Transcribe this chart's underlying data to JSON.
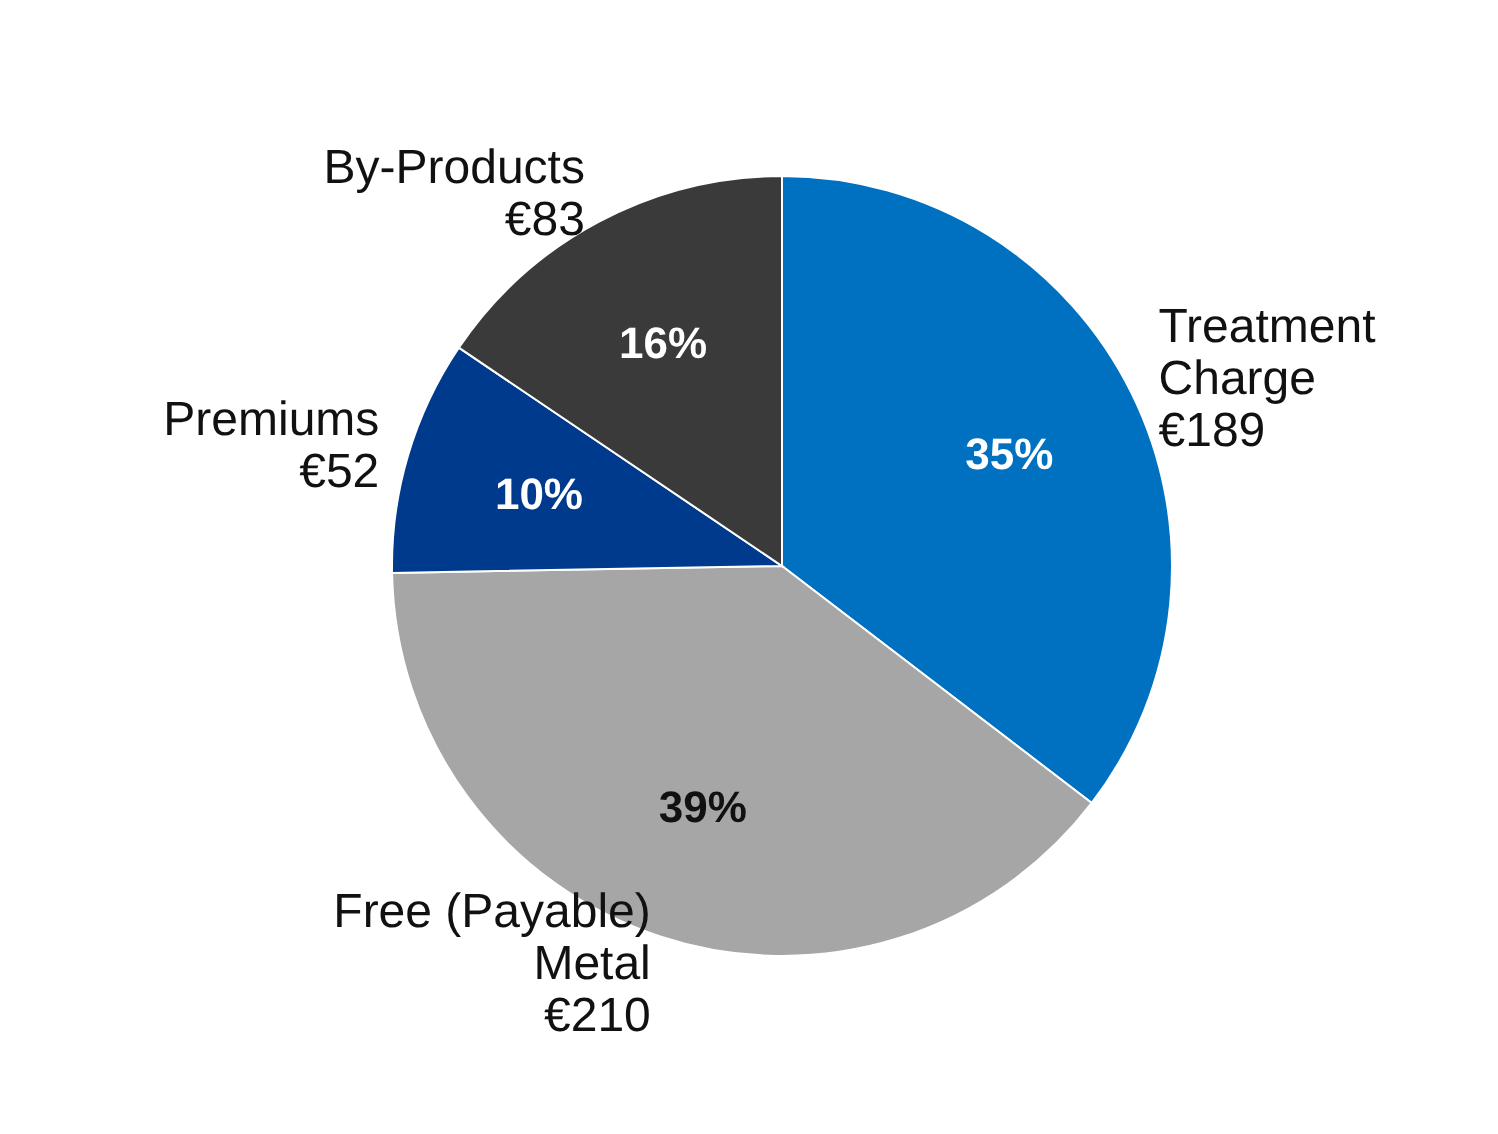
{
  "chart_data": {
    "type": "pie",
    "categories": [
      "Treatment Charge",
      "Free (Payable) Metal",
      "Premiums",
      "By-Products"
    ],
    "values": [
      189,
      210,
      52,
      83
    ],
    "value_labels": [
      "€189",
      "€210",
      "€52",
      "€83"
    ],
    "colors": [
      "#0070c0",
      "#a6a6a6",
      "#003a8c",
      "#3a3a3a"
    ],
    "annotations": [
      "35%",
      "39%",
      "10%",
      "16%"
    ]
  }
}
